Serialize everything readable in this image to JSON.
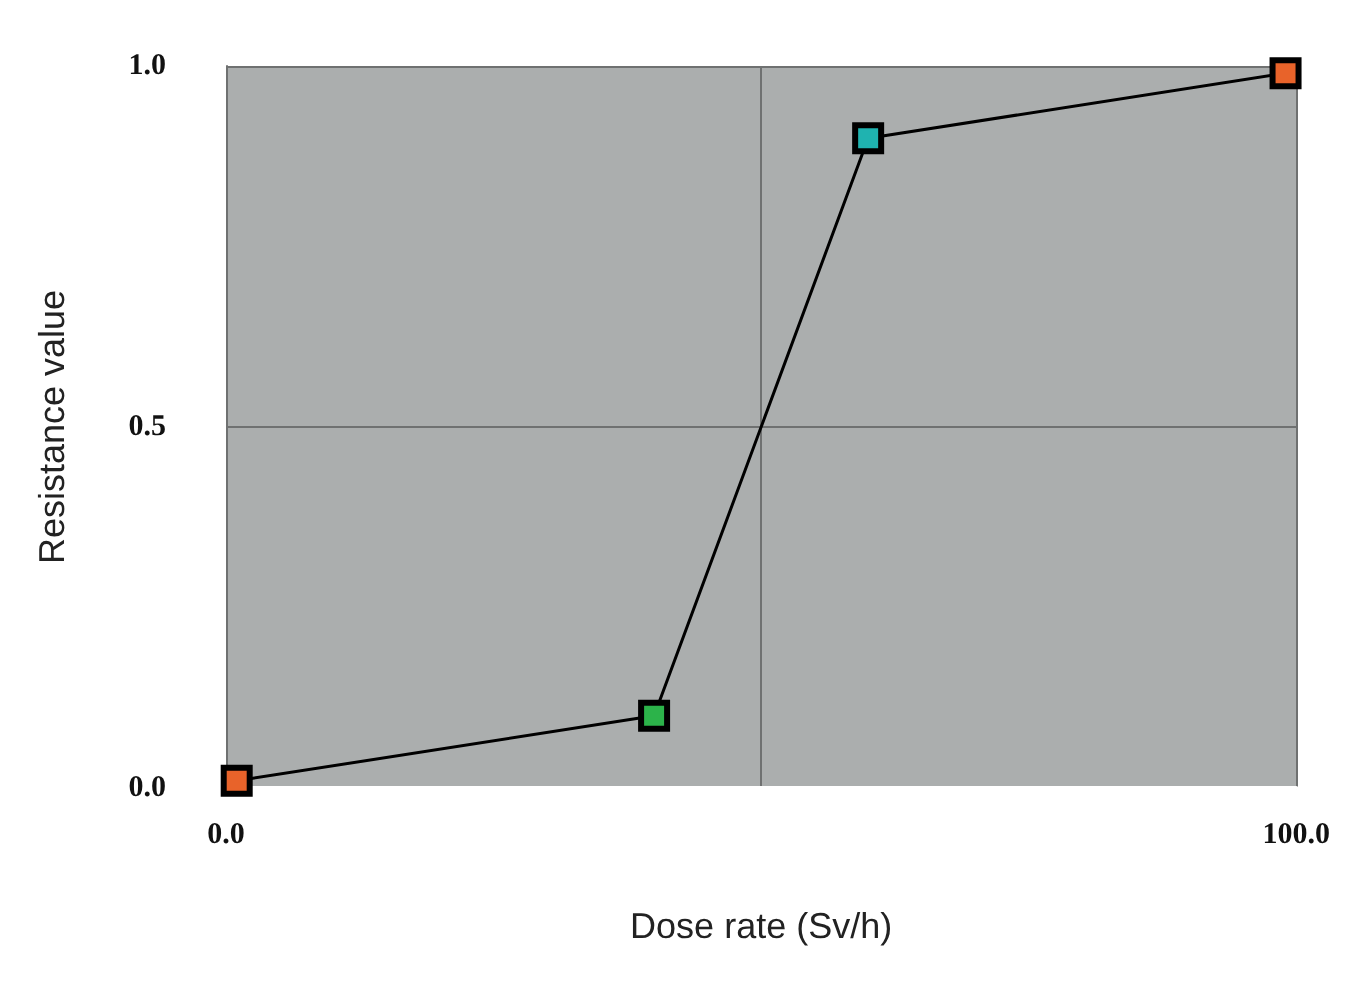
{
  "chart_data": {
    "type": "line",
    "xlabel": "Dose rate (Sv/h)",
    "ylabel": "Resistance value",
    "x": [
      1,
      40,
      60,
      99
    ],
    "series": [
      {
        "color": "#000000",
        "colors": [
          "#e8632a",
          "#2cb34a",
          "#1fb3b0",
          "#e8632a"
        ],
        "values": [
          0.01,
          0.1,
          0.9,
          0.99
        ]
      }
    ],
    "xlim": [
      0,
      100
    ],
    "xticks": [
      {
        "value": 0,
        "label": "0.0"
      },
      {
        "value": 50,
        "label": null
      },
      {
        "value": 100,
        "label": "100.0"
      }
    ],
    "ylim": [
      0,
      1
    ],
    "yticks": [
      {
        "value": 0,
        "label": "0.0"
      },
      {
        "value": 0.5,
        "label": "0.5"
      },
      {
        "value": 1,
        "label": "1.0"
      }
    ],
    "grid": true,
    "marker": "square",
    "line_style": "solid"
  }
}
